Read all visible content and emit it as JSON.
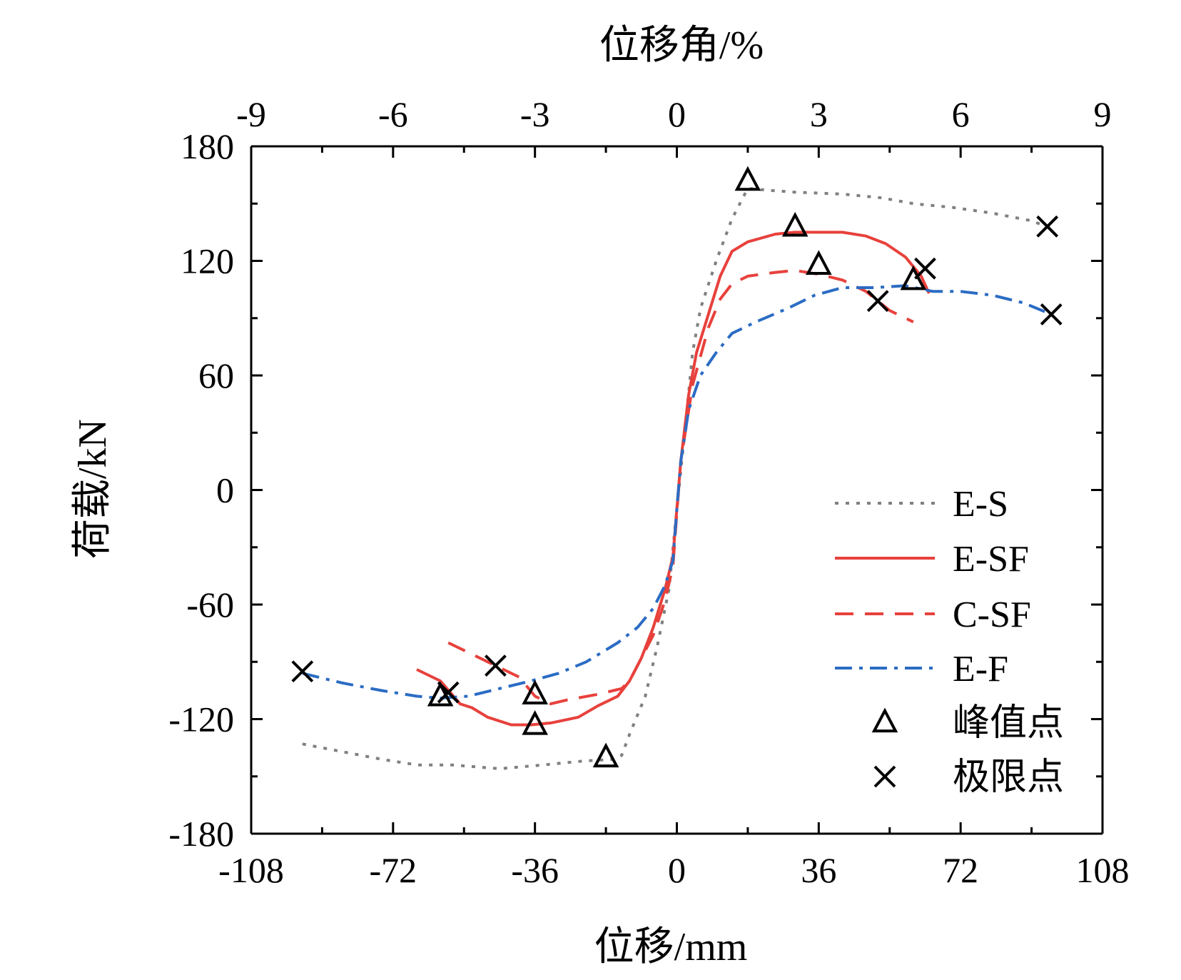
{
  "chart_data": {
    "type": "line",
    "xlabel": "位移/mm",
    "x2label": "位移角/%",
    "ylabel": "荷载/kN",
    "xlim": [
      -108,
      108
    ],
    "x2lim": [
      -9,
      9
    ],
    "ylim": [
      -180,
      180
    ],
    "xticks": [
      -108,
      -72,
      -36,
      0,
      36,
      72,
      108
    ],
    "xtick_labels": [
      "-108",
      "-72",
      "-36",
      "0",
      "36",
      "72",
      "108"
    ],
    "x2ticks": [
      -9,
      -6,
      -3,
      0,
      3,
      6,
      9
    ],
    "x2tick_labels": [
      "-9",
      "-6",
      "-3",
      "0",
      "3",
      "6",
      "9"
    ],
    "yticks": [
      -180,
      -120,
      -60,
      0,
      60,
      120,
      180
    ],
    "ytick_labels": [
      "-180",
      "-120",
      "-60",
      "0",
      "60",
      "120",
      "180"
    ],
    "grid": false,
    "legend_position": "right",
    "series": [
      {
        "name": "E-S",
        "color": "#808080",
        "dash": "dotted",
        "x": [
          -95,
          -85,
          -75,
          -66,
          -57,
          -45,
          -34,
          -24,
          -16,
          -14,
          -12,
          -8,
          -5,
          -2,
          0,
          2,
          4,
          6,
          10,
          14,
          18,
          23,
          30,
          42,
          52,
          60,
          70,
          80,
          90,
          95
        ],
        "y": [
          -133,
          -137,
          -141,
          -144,
          -144,
          -146,
          -144,
          -142,
          -141,
          -139,
          -128,
          -108,
          -82,
          -52,
          -10,
          30,
          72,
          95,
          120,
          142,
          158,
          157,
          156,
          155,
          153,
          150,
          148,
          145,
          141,
          137
        ]
      },
      {
        "name": "E-SF",
        "color": "#e8413c",
        "dash": "solid",
        "x": [
          -66,
          -60,
          -55,
          -52,
          -48,
          -42,
          -37,
          -32,
          -25,
          -20,
          -15,
          -12,
          -9,
          -6,
          -3,
          -1,
          0,
          1,
          3,
          5,
          8,
          11,
          14,
          18,
          25,
          30,
          35,
          42,
          48,
          53,
          58,
          62,
          64
        ],
        "y": [
          -94,
          -100,
          -112,
          -114,
          -119,
          -123,
          -123,
          -122,
          -119,
          -113,
          -108,
          -100,
          -88,
          -72,
          -52,
          -35,
          -10,
          15,
          50,
          72,
          92,
          112,
          125,
          130,
          134,
          135,
          135,
          135,
          133,
          129,
          122,
          112,
          103
        ]
      },
      {
        "name": "C-SF",
        "color": "#e8413c",
        "dash": "dashed",
        "x": [
          -58,
          -52,
          -46,
          -40,
          -36,
          -32,
          -28,
          -20,
          -14,
          -12,
          -10,
          -6,
          -3,
          -1,
          0,
          1,
          4,
          8,
          11,
          14,
          18,
          25,
          30,
          36,
          42,
          48,
          54,
          60
        ],
        "y": [
          -80,
          -86,
          -92,
          -98,
          -108,
          -112,
          -110,
          -107,
          -104,
          -100,
          -92,
          -76,
          -58,
          -40,
          -12,
          15,
          55,
          85,
          100,
          108,
          112,
          114,
          115,
          113,
          110,
          104,
          94,
          88
        ]
      },
      {
        "name": "E-F",
        "color": "#2b6cc4",
        "dash": "dashdot",
        "x": [
          -95,
          -85,
          -75,
          -66,
          -60,
          -53,
          -45,
          -37,
          -30,
          -23,
          -15,
          -10,
          -6,
          -3,
          -1,
          0,
          1,
          3,
          6,
          10,
          14,
          20,
          28,
          35,
          42,
          50,
          58,
          65,
          72,
          80,
          88,
          95
        ],
        "y": [
          -96,
          -101,
          -105,
          -108,
          -109,
          -108,
          -104,
          -100,
          -96,
          -90,
          -80,
          -72,
          -62,
          -50,
          -37,
          -10,
          15,
          42,
          60,
          72,
          82,
          88,
          95,
          102,
          106,
          106,
          107,
          104,
          104,
          102,
          98,
          92
        ]
      }
    ],
    "peak_points": {
      "name": "峰值点",
      "points": [
        [
          18,
          162
        ],
        [
          30,
          138
        ],
        [
          36,
          118
        ],
        [
          60,
          110
        ],
        [
          -18,
          -140
        ],
        [
          -36,
          -123
        ],
        [
          -36,
          -107
        ],
        [
          -60,
          -108
        ]
      ]
    },
    "ultimate_points": {
      "name": "极限点",
      "points": [
        [
          -95,
          -95
        ],
        [
          -58,
          -106
        ],
        [
          -46,
          -92
        ],
        [
          51,
          99
        ],
        [
          63,
          116
        ],
        [
          94,
          138
        ],
        [
          95,
          92
        ]
      ]
    }
  }
}
